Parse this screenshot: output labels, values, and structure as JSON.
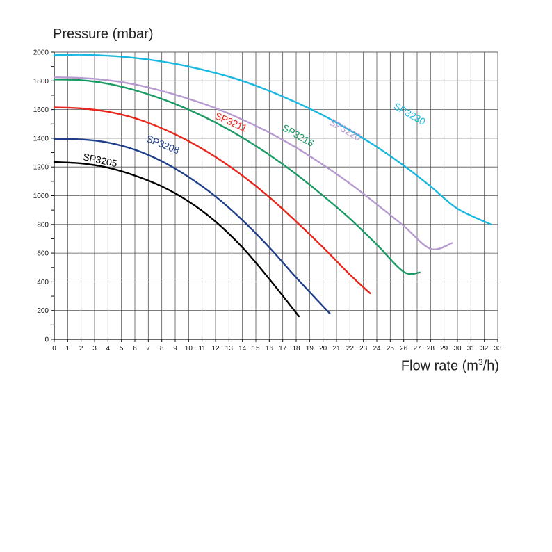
{
  "chart_data": {
    "type": "line",
    "ylabel": "Pressure (mbar)",
    "xlabel_main": "Flow rate (m",
    "xlabel_sup": "3",
    "xlabel_end": "/h)",
    "xlim": [
      0,
      33
    ],
    "ylim": [
      0,
      2000
    ],
    "xticks": [
      "0",
      "1",
      "2",
      "3",
      "4",
      "5",
      "6",
      "7",
      "8",
      "9",
      "10",
      "11",
      "12",
      "13",
      "14",
      "15",
      "16",
      "17",
      "18",
      "19",
      "20",
      "21",
      "22",
      "23",
      "24",
      "25",
      "26",
      "27",
      "28",
      "29",
      "30",
      "31",
      "32",
      "33"
    ],
    "yticks": [
      "0",
      "200",
      "400",
      "600",
      "800",
      "1000",
      "1200",
      "1400",
      "1600",
      "1800",
      "2000"
    ],
    "grid": true,
    "series": [
      {
        "name": "SP3205",
        "color": "#000000",
        "label_angle": 12,
        "points": [
          [
            0,
            1235
          ],
          [
            2,
            1225
          ],
          [
            4,
            1195
          ],
          [
            6,
            1140
          ],
          [
            8,
            1065
          ],
          [
            10,
            960
          ],
          [
            12,
            820
          ],
          [
            14,
            640
          ],
          [
            16,
            420
          ],
          [
            18.2,
            160
          ]
        ]
      },
      {
        "name": "SP3208",
        "color": "#1f3f8a",
        "label_angle": 22,
        "points": [
          [
            0,
            1395
          ],
          [
            2,
            1392
          ],
          [
            4,
            1370
          ],
          [
            6,
            1320
          ],
          [
            8,
            1240
          ],
          [
            10,
            1130
          ],
          [
            12,
            995
          ],
          [
            14,
            830
          ],
          [
            16,
            640
          ],
          [
            18,
            430
          ],
          [
            20.5,
            180
          ]
        ]
      },
      {
        "name": "SP3211",
        "color": "#e8261b",
        "label_angle": 24,
        "points": [
          [
            0,
            1615
          ],
          [
            2,
            1608
          ],
          [
            4,
            1585
          ],
          [
            6,
            1540
          ],
          [
            8,
            1470
          ],
          [
            10,
            1380
          ],
          [
            12,
            1270
          ],
          [
            14,
            1140
          ],
          [
            16,
            990
          ],
          [
            18,
            820
          ],
          [
            20,
            640
          ],
          [
            22,
            450
          ],
          [
            23.5,
            320
          ]
        ]
      },
      {
        "name": "SP3216",
        "color": "#1a9a64",
        "label_angle": 30,
        "points": [
          [
            0,
            1810
          ],
          [
            2,
            1805
          ],
          [
            4,
            1780
          ],
          [
            6,
            1735
          ],
          [
            8,
            1675
          ],
          [
            10,
            1600
          ],
          [
            12,
            1510
          ],
          [
            14,
            1405
          ],
          [
            16,
            1285
          ],
          [
            18,
            1150
          ],
          [
            20,
            1000
          ],
          [
            22,
            840
          ],
          [
            24,
            660
          ],
          [
            26,
            470
          ],
          [
            27.2,
            465
          ]
        ]
      },
      {
        "name": "SP3220",
        "color": "#b79ad0",
        "label_angle": 30,
        "points": [
          [
            0,
            1825
          ],
          [
            2,
            1820
          ],
          [
            4,
            1805
          ],
          [
            6,
            1775
          ],
          [
            8,
            1730
          ],
          [
            10,
            1675
          ],
          [
            12,
            1610
          ],
          [
            14,
            1530
          ],
          [
            16,
            1440
          ],
          [
            18,
            1335
          ],
          [
            20,
            1215
          ],
          [
            22,
            1085
          ],
          [
            24,
            940
          ],
          [
            26,
            790
          ],
          [
            28,
            630
          ],
          [
            29.6,
            670
          ]
        ]
      },
      {
        "name": "SP3230",
        "color": "#1ab8e0",
        "label_angle": 30,
        "points": [
          [
            0,
            1980
          ],
          [
            2,
            1982
          ],
          [
            4,
            1975
          ],
          [
            6,
            1960
          ],
          [
            8,
            1935
          ],
          [
            10,
            1900
          ],
          [
            12,
            1855
          ],
          [
            14,
            1800
          ],
          [
            16,
            1730
          ],
          [
            18,
            1650
          ],
          [
            20,
            1560
          ],
          [
            22,
            1455
          ],
          [
            24,
            1340
          ],
          [
            26,
            1210
          ],
          [
            28,
            1065
          ],
          [
            30,
            910
          ],
          [
            32.5,
            800
          ]
        ]
      }
    ]
  }
}
